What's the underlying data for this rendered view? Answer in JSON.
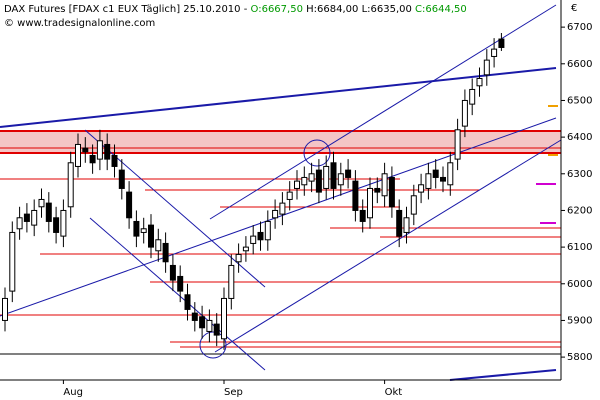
{
  "chart_data": {
    "type": "candlestick",
    "title": "DAX Futures [FDAX c1 EUX Täglich] 25.10.2010 -",
    "quote_labels": [
      "O:6667,50",
      "H:6684,00",
      "L:6635,00",
      "C:6644,50"
    ],
    "copyright": "© www.tradesignalonline.com",
    "currency": "€",
    "categories": [
      null,
      null,
      null,
      null,
      null,
      null,
      null,
      null,
      "Aug",
      null,
      null,
      null,
      null,
      null,
      null,
      null,
      null,
      null,
      null,
      null,
      null,
      null,
      null,
      null,
      null,
      null,
      null,
      null,
      null,
      null,
      "Sep",
      null,
      null,
      null,
      null,
      null,
      null,
      null,
      null,
      null,
      null,
      null,
      null,
      null,
      null,
      null,
      null,
      null,
      null,
      null,
      null,
      null,
      "Okt",
      null,
      null,
      null,
      null,
      null,
      null,
      null,
      null,
      null,
      null,
      null,
      null,
      null,
      null,
      null,
      null
    ],
    "open": [
      5900,
      5980,
      6150,
      6190,
      6160,
      6210,
      6220,
      6180,
      6130,
      6210,
      6320,
      6370,
      6350,
      6340,
      6380,
      6350,
      6310,
      6250,
      6170,
      6140,
      6160,
      6090,
      6110,
      6050,
      6020,
      5970,
      5920,
      5910,
      5870,
      5890,
      5850,
      5960,
      6060,
      6090,
      6110,
      6140,
      6120,
      6180,
      6190,
      6230,
      6260,
      6270,
      6280,
      6310,
      6260,
      6330,
      6270,
      6310,
      6280,
      6200,
      6180,
      6260,
      6240,
      6290,
      6200,
      6140,
      6190,
      6250,
      6260,
      6310,
      6290,
      6270,
      6340,
      6430,
      6490,
      6540,
      6570,
      6620,
      6667.5
    ],
    "high": [
      5990,
      6170,
      6210,
      6220,
      6230,
      6260,
      6250,
      6210,
      6230,
      6360,
      6410,
      6400,
      6380,
      6420,
      6410,
      6380,
      6340,
      6280,
      6200,
      6180,
      6190,
      6150,
      6140,
      6080,
      6050,
      6000,
      5950,
      5940,
      5930,
      5920,
      5990,
      6080,
      6110,
      6130,
      6160,
      6170,
      6200,
      6230,
      6250,
      6280,
      6310,
      6320,
      6330,
      6340,
      6350,
      6360,
      6330,
      6340,
      6310,
      6230,
      6290,
      6290,
      6330,
      6320,
      6230,
      6210,
      6270,
      6300,
      6330,
      6340,
      6320,
      6360,
      6450,
      6530,
      6560,
      6590,
      6640,
      6670,
      6684
    ],
    "low": [
      5870,
      5950,
      6120,
      6140,
      6130,
      6180,
      6140,
      6110,
      6100,
      6180,
      6290,
      6330,
      6300,
      6310,
      6310,
      6290,
      6230,
      6150,
      6100,
      6110,
      6070,
      6060,
      6030,
      5980,
      5950,
      5900,
      5870,
      5850,
      5840,
      5830,
      5820,
      5930,
      6030,
      6060,
      6080,
      6090,
      6090,
      6150,
      6160,
      6200,
      6230,
      6240,
      6250,
      6220,
      6230,
      6230,
      6240,
      6260,
      6170,
      6140,
      6150,
      6220,
      6210,
      6180,
      6100,
      6110,
      6160,
      6220,
      6230,
      6260,
      6250,
      6240,
      6310,
      6400,
      6460,
      6510,
      6540,
      6590,
      6635
    ],
    "close": [
      5960,
      6140,
      6180,
      6170,
      6200,
      6230,
      6170,
      6140,
      6200,
      6330,
      6380,
      6360,
      6330,
      6390,
      6340,
      6320,
      6260,
      6180,
      6130,
      6150,
      6100,
      6120,
      6060,
      6010,
      5980,
      5930,
      5900,
      5880,
      5900,
      5860,
      5960,
      6050,
      6080,
      6100,
      6130,
      6120,
      6170,
      6200,
      6220,
      6250,
      6280,
      6290,
      6300,
      6250,
      6320,
      6260,
      6300,
      6290,
      6200,
      6170,
      6260,
      6250,
      6300,
      6210,
      6130,
      6180,
      6240,
      6270,
      6300,
      6290,
      6280,
      6330,
      6420,
      6500,
      6530,
      6560,
      6610,
      6640,
      6644.5
    ],
    "ylim": [
      5743,
      6774
    ],
    "yticks": [
      5800,
      5900,
      6000,
      6100,
      6200,
      6300,
      6400,
      6500,
      6600,
      6700
    ]
  }
}
